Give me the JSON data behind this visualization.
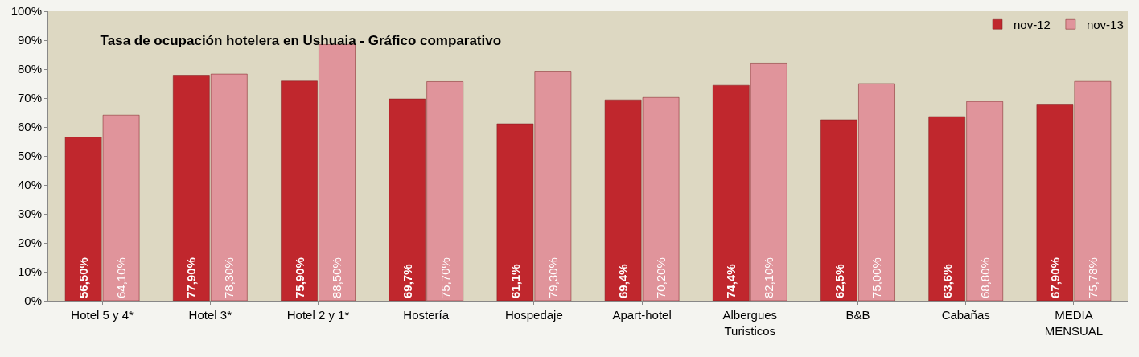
{
  "chart_data": {
    "type": "bar",
    "title": "Tasa de ocupación hotelera en Ushuaia - Gráfico comparativo",
    "categories": [
      "Hotel 5 y 4*",
      "Hotel 3*",
      "Hotel 2 y 1*",
      "Hostería",
      "Hospedaje",
      "Apart-hotel",
      "Albergues Turisticos",
      "B&B",
      "Cabañas",
      "MEDIA MENSUAL"
    ],
    "series": [
      {
        "name": "nov-12",
        "color": "#c0272d",
        "values": [
          56.5,
          77.9,
          75.9,
          69.7,
          61.1,
          69.4,
          74.4,
          62.5,
          63.6,
          67.9
        ],
        "value_labels": [
          "56,50%",
          "77,90%",
          "75,90%",
          "69,7%",
          "61,1%",
          "69,4%",
          "74,4%",
          "62,5%",
          "63,6%",
          "67,90%"
        ]
      },
      {
        "name": "nov-13",
        "color": "#e0949b",
        "values": [
          64.1,
          78.3,
          88.5,
          75.7,
          79.3,
          70.2,
          82.1,
          75.0,
          68.8,
          75.78
        ],
        "value_labels": [
          "64,10%",
          "78,30%",
          "88,50%",
          "75,70%",
          "79,30%",
          "70,20%",
          "82,10%",
          "75,00%",
          "68,80%",
          "75,78%"
        ]
      }
    ],
    "ylim": [
      0,
      100
    ],
    "yticks": [
      {
        "value": 0,
        "label": "0%"
      },
      {
        "value": 10,
        "label": "10%"
      },
      {
        "value": 20,
        "label": "20%"
      },
      {
        "value": 30,
        "label": "30%"
      },
      {
        "value": 40,
        "label": "40%"
      },
      {
        "value": 50,
        "label": "50%"
      },
      {
        "value": 60,
        "label": "60%"
      },
      {
        "value": 70,
        "label": "70%"
      },
      {
        "value": 80,
        "label": "80%"
      },
      {
        "value": 90,
        "label": "90%"
      },
      {
        "value": 100,
        "label": "100%"
      }
    ],
    "grid": false,
    "legend": "top right"
  }
}
